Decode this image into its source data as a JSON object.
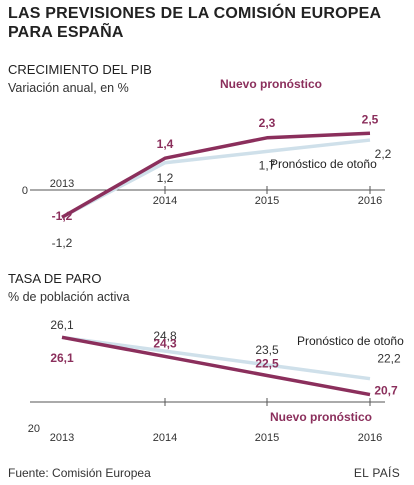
{
  "title": "LAS PREVISIONES DE LA COMISIÓN EUROPEA PARA ESPAÑA",
  "footer": {
    "source": "Fuente: Comisión Europea",
    "brand": "EL PAÍS"
  },
  "colors": {
    "new": "#8b2f5c",
    "autumn": "#cfe0ea",
    "axis": "#555555",
    "text": "#222222"
  },
  "chart_data": [
    {
      "type": "line",
      "title": "CRECIMIENTO DEL PIB",
      "subtitle": "Variación anual, en %",
      "x": [
        "2013",
        "2014",
        "2015",
        "2016"
      ],
      "baseline_label": "0",
      "ylim": [
        -1.2,
        2.5
      ],
      "series": [
        {
          "name": "Nuevo pronóstico",
          "values": [
            -1.2,
            1.4,
            2.3,
            2.5
          ],
          "labels": [
            "-1,2",
            "1,4",
            "2,3",
            "2,5"
          ]
        },
        {
          "name": "Pronóstico de otoño",
          "values": [
            -1.2,
            1.2,
            1.7,
            2.2
          ],
          "labels": [
            "-1,2",
            "1,2",
            "1,7",
            "2,2"
          ]
        }
      ]
    },
    {
      "type": "line",
      "title": "TASA DE PARO",
      "subtitle": "% de población activa",
      "x": [
        "2013",
        "2014",
        "2015",
        "2016"
      ],
      "baseline_label": "20",
      "ylim": [
        20,
        26.1
      ],
      "series": [
        {
          "name": "Nuevo pronóstico",
          "values": [
            26.1,
            24.3,
            22.5,
            20.7
          ],
          "labels": [
            "26,1",
            "24,3",
            "22,5",
            "20,7"
          ]
        },
        {
          "name": "Pronóstico de otoño",
          "values": [
            26.1,
            24.8,
            23.5,
            22.2
          ],
          "labels": [
            "26,1",
            "24,8",
            "23,5",
            "22,2"
          ]
        }
      ]
    }
  ]
}
